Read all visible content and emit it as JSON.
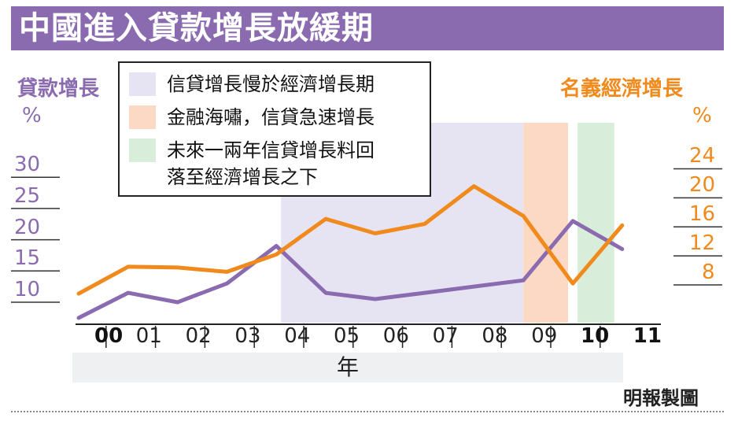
{
  "title": "中國進入貸款增長放緩期",
  "credit": "明報製圖",
  "chart_data": {
    "type": "line",
    "categories": [
      "00",
      "01",
      "02",
      "03",
      "04",
      "05",
      "06",
      "07",
      "08",
      "09",
      "10",
      "11"
    ],
    "x_label": "年",
    "bold_categories": [
      "00",
      "10",
      "11"
    ],
    "left_axis": {
      "title": "貸款增長",
      "unit": "%",
      "ticks": [
        30,
        25,
        20,
        15,
        10
      ],
      "ylim": [
        7,
        30
      ]
    },
    "right_axis": {
      "title": "名義經濟增長",
      "unit": "%",
      "ticks": [
        24,
        20,
        16,
        12,
        8
      ],
      "ylim": [
        6,
        24
      ]
    },
    "series": [
      {
        "axis": "left",
        "color": "#8b6bb0",
        "x": [
          "00",
          "01",
          "02",
          "03",
          "04",
          "05",
          "06",
          "07",
          "08",
          "09",
          "10",
          "11"
        ],
        "values": [
          7.5,
          11.5,
          10.0,
          13.0,
          19.0,
          11.5,
          10.5,
          11.5,
          12.5,
          13.5,
          23.0,
          18.5
        ]
      },
      {
        "axis": "right",
        "color": "#f08a1c",
        "x": [
          "00",
          "01",
          "02",
          "03",
          "04",
          "05",
          "06",
          "07",
          "08",
          "09",
          "10",
          "11"
        ],
        "values": [
          6.8,
          10.5,
          10.4,
          9.8,
          12.2,
          17.1,
          15.1,
          16.4,
          21.6,
          17.5,
          8.2,
          16.2
        ]
      }
    ],
    "shaded_periods": [
      {
        "start": "04",
        "end": "09",
        "color": "#e6e3f3",
        "label": "信貸增長慢於經濟增長期"
      },
      {
        "start": "09",
        "end": "10",
        "color": "#fbd9c5",
        "label": "金融海嘯，信貸急速增長"
      },
      {
        "start": "10",
        "end": "11",
        "color": "#d8eedb",
        "label": "未來一兩年信貸增長料回落至經濟增長之下"
      }
    ],
    "legend": [
      {
        "lines": [
          "信貸增長慢於經濟增長期"
        ],
        "color": "#e6e3f3"
      },
      {
        "lines": [
          "金融海嘯，信貸急速增長"
        ],
        "color": "#fbd9c5"
      },
      {
        "lines": [
          "未來一兩年信貸增長料回",
          "落至經濟增長之下"
        ],
        "color": "#d8eedb"
      }
    ]
  }
}
